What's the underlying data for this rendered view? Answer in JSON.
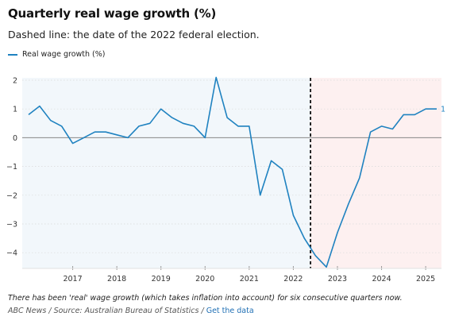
{
  "header": {
    "title": "Quarterly real wage growth (%)",
    "subtitle": "Dashed line: the date of the 2022 federal election."
  },
  "legend": {
    "label": "Real wage growth (%)"
  },
  "footer": {
    "note": "There has been 'real' wage growth (which takes inflation into account) for six consecutive quarters now.",
    "source": "ABC News / Source: Australian Bureau of Statistics / ",
    "link": "Get the data"
  },
  "colors": {
    "line": "#1f82c0",
    "shade_before": "#f2f7fb",
    "shade_after": "#fdf0f0",
    "zero_line": "#888888"
  },
  "chart_data": {
    "type": "line",
    "title": "Quarterly real wage growth (%)",
    "xlabel": "",
    "ylabel": "",
    "ylim": [
      -4.5,
      2.1
    ],
    "xlim": [
      2016.0,
      2025.25
    ],
    "yticks": [
      "2",
      "1",
      "0",
      "−1",
      "−2",
      "−3",
      "−4"
    ],
    "ytick_values": [
      2,
      1,
      0,
      -1,
      -2,
      -3,
      -4
    ],
    "xticks": [
      "2017",
      "2018",
      "2019",
      "2020",
      "2021",
      "2022",
      "2023",
      "2024",
      "2025"
    ],
    "xtick_values": [
      2017,
      2018,
      2019,
      2020,
      2021,
      2022,
      2023,
      2024,
      2025
    ],
    "election_date": 2022.39,
    "end_label": "1",
    "grid": true,
    "legend_position": "top-left",
    "series": [
      {
        "name": "Real wage growth (%)",
        "x": [
          2016.0,
          2016.25,
          2016.5,
          2016.75,
          2017.0,
          2017.25,
          2017.5,
          2017.75,
          2018.0,
          2018.25,
          2018.5,
          2018.75,
          2019.0,
          2019.25,
          2019.5,
          2019.75,
          2020.0,
          2020.25,
          2020.5,
          2020.75,
          2021.0,
          2021.25,
          2021.5,
          2021.75,
          2022.0,
          2022.25,
          2022.5,
          2022.75,
          2023.0,
          2023.25,
          2023.5,
          2023.75,
          2024.0,
          2024.25,
          2024.5,
          2024.75,
          2025.0,
          2025.25
        ],
        "y": [
          0.8,
          1.1,
          0.6,
          0.4,
          -0.2,
          0.0,
          0.2,
          0.2,
          0.1,
          0.0,
          0.4,
          0.5,
          1.0,
          0.7,
          0.5,
          0.4,
          0.0,
          2.1,
          0.7,
          0.4,
          0.4,
          -2.0,
          -0.8,
          -1.1,
          -2.7,
          -3.5,
          -4.1,
          -4.5,
          -3.3,
          -2.3,
          -1.4,
          0.2,
          0.4,
          0.3,
          0.8,
          0.8,
          1.0,
          1.0
        ]
      }
    ]
  }
}
